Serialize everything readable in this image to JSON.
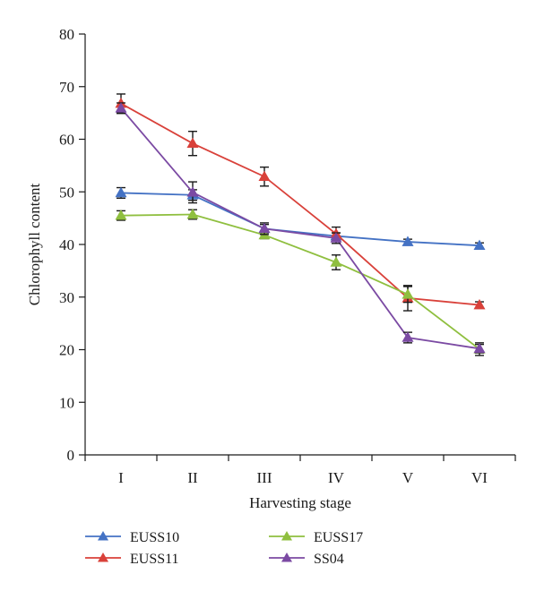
{
  "chart_data": {
    "type": "line",
    "title": "",
    "xlabel": "Harvesting stage",
    "ylabel": "Chlorophyll content",
    "categories": [
      "I",
      "II",
      "III",
      "IV",
      "V",
      "VI"
    ],
    "ylim": [
      0,
      80
    ],
    "yticks": [
      0,
      10,
      20,
      30,
      40,
      50,
      60,
      70,
      80
    ],
    "grid": false,
    "legend_position": "bottom",
    "marker": "triangle",
    "series": [
      {
        "name": "EUSS10",
        "color": "#4472c4",
        "values": [
          49.8,
          49.4,
          43.0,
          41.6,
          40.5,
          39.8
        ],
        "errors": [
          1.0,
          1.0,
          0.8,
          0.6,
          0.5,
          0.5
        ]
      },
      {
        "name": "EUSS11",
        "color": "#d9413a",
        "values": [
          66.8,
          59.2,
          52.9,
          42.0,
          29.8,
          28.5
        ],
        "errors": [
          1.8,
          2.3,
          1.8,
          1.3,
          2.4,
          0.6
        ]
      },
      {
        "name": "EUSS17",
        "color": "#8fbf3f",
        "values": [
          45.5,
          45.7,
          41.8,
          36.6,
          30.5,
          20.1
        ],
        "errors": [
          0.9,
          0.9,
          0.7,
          1.4,
          1.5,
          1.2
        ]
      },
      {
        "name": "SS04",
        "color": "#7b4aa3",
        "values": [
          65.9,
          49.9,
          43.0,
          41.2,
          22.3,
          20.2
        ],
        "errors": [
          1.0,
          2.0,
          1.1,
          1.0,
          1.0,
          0.8
        ]
      }
    ]
  }
}
